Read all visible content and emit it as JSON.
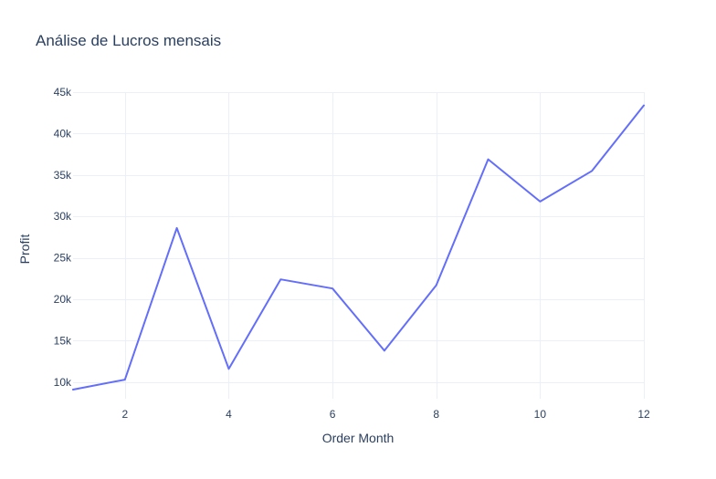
{
  "chart_data": {
    "type": "line",
    "title": "Análise de Lucros mensais",
    "xlabel": "Order Month",
    "ylabel": "Profit",
    "x": [
      1,
      2,
      3,
      4,
      5,
      6,
      7,
      8,
      9,
      10,
      11,
      12
    ],
    "series": [
      {
        "values": [
          9100,
          10300,
          28600,
          11600,
          22400,
          21300,
          13800,
          21700,
          36900,
          31800,
          35500,
          43400
        ],
        "color": "#636efa"
      }
    ],
    "xlim": [
      1,
      12
    ],
    "ylim": [
      8000,
      45000
    ],
    "x_ticks": [
      2,
      4,
      6,
      8,
      10,
      12
    ],
    "y_ticks": [
      10000,
      15000,
      20000,
      25000,
      30000,
      35000,
      40000,
      45000
    ],
    "x_tick_labels": [
      "2",
      "4",
      "6",
      "8",
      "10",
      "12"
    ],
    "y_tick_labels": [
      "10k",
      "15k",
      "20k",
      "25k",
      "30k",
      "35k",
      "40k",
      "45k"
    ],
    "grid": true,
    "legend": "none",
    "colors": {
      "background": "#ffffff",
      "grid": "#ebf0f8",
      "text": "#2a3f5f"
    }
  }
}
